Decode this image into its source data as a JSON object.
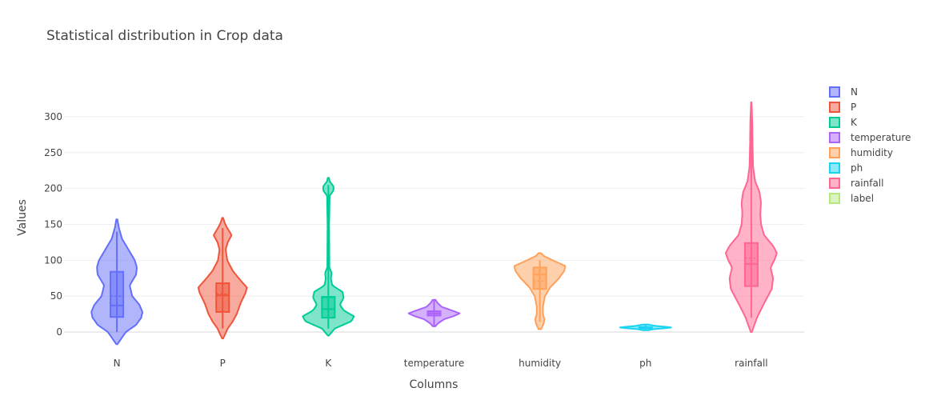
{
  "chart_data": {
    "type": "violin",
    "title": "Statistical distribution in Crop data",
    "xlabel": "Columns",
    "ylabel": "Values",
    "ylim": [
      -20,
      340
    ],
    "yticks": [
      0,
      50,
      100,
      150,
      200,
      250,
      300
    ],
    "grid": true,
    "legend_position": "right",
    "categories": [
      "N",
      "P",
      "K",
      "temperature",
      "humidity",
      "ph",
      "rainfall"
    ],
    "series": [
      {
        "name": "N",
        "color": "#636efa",
        "min": 0,
        "q1": 21,
        "median": 37,
        "q3": 84,
        "max": 140,
        "mean": 50,
        "kde_extent": [
          -17,
          157
        ],
        "profile": [
          [
            -17,
            0.02
          ],
          [
            0,
            0.35
          ],
          [
            10,
            0.75
          ],
          [
            20,
            0.95
          ],
          [
            28,
            1.0
          ],
          [
            38,
            0.88
          ],
          [
            50,
            0.6
          ],
          [
            65,
            0.5
          ],
          [
            80,
            0.75
          ],
          [
            90,
            0.78
          ],
          [
            100,
            0.7
          ],
          [
            115,
            0.45
          ],
          [
            130,
            0.2
          ],
          [
            145,
            0.08
          ],
          [
            157,
            0.02
          ]
        ]
      },
      {
        "name": "P",
        "color": "#ef553b",
        "min": 5,
        "q1": 28,
        "median": 51,
        "q3": 68,
        "max": 145,
        "mean": 53,
        "kde_extent": [
          -9,
          159
        ],
        "profile": [
          [
            -9,
            0.02
          ],
          [
            5,
            0.2
          ],
          [
            15,
            0.4
          ],
          [
            25,
            0.55
          ],
          [
            40,
            0.7
          ],
          [
            55,
            0.9
          ],
          [
            62,
            0.95
          ],
          [
            72,
            0.7
          ],
          [
            85,
            0.4
          ],
          [
            100,
            0.18
          ],
          [
            115,
            0.12
          ],
          [
            125,
            0.2
          ],
          [
            135,
            0.35
          ],
          [
            145,
            0.18
          ],
          [
            152,
            0.08
          ],
          [
            159,
            0.02
          ]
        ]
      },
      {
        "name": "K",
        "color": "#00cc96",
        "min": 5,
        "q1": 20,
        "median": 32,
        "q3": 49,
        "max": 205,
        "mean": 48,
        "kde_extent": [
          -5,
          215
        ],
        "profile": [
          [
            -5,
            0.02
          ],
          [
            5,
            0.25
          ],
          [
            15,
            0.9
          ],
          [
            22,
            1.0
          ],
          [
            30,
            0.6
          ],
          [
            38,
            0.45
          ],
          [
            48,
            0.6
          ],
          [
            56,
            0.55
          ],
          [
            65,
            0.15
          ],
          [
            75,
            0.1
          ],
          [
            82,
            0.13
          ],
          [
            90,
            0.04
          ],
          [
            150,
            0.03
          ],
          [
            190,
            0.05
          ],
          [
            197,
            0.2
          ],
          [
            203,
            0.2
          ],
          [
            210,
            0.05
          ],
          [
            215,
            0.02
          ]
        ]
      },
      {
        "name": "temperature",
        "color": "#ab63fa",
        "min": 9,
        "q1": 23,
        "median": 26,
        "q3": 29,
        "max": 44,
        "mean": 26,
        "kde_extent": [
          8,
          45
        ],
        "profile": [
          [
            8,
            0.05
          ],
          [
            12,
            0.15
          ],
          [
            18,
            0.4
          ],
          [
            22,
            0.75
          ],
          [
            26,
            1.0
          ],
          [
            30,
            0.7
          ],
          [
            35,
            0.3
          ],
          [
            40,
            0.15
          ],
          [
            45,
            0.05
          ]
        ]
      },
      {
        "name": "humidity",
        "color": "#ffa15a",
        "min": 14,
        "q1": 60,
        "median": 80,
        "q3": 90,
        "max": 100,
        "mean": 71,
        "kde_extent": [
          4,
          110
        ],
        "profile": [
          [
            4,
            0.05
          ],
          [
            12,
            0.15
          ],
          [
            18,
            0.18
          ],
          [
            25,
            0.12
          ],
          [
            35,
            0.12
          ],
          [
            50,
            0.2
          ],
          [
            62,
            0.4
          ],
          [
            75,
            0.75
          ],
          [
            85,
            0.95
          ],
          [
            92,
            1.0
          ],
          [
            100,
            0.5
          ],
          [
            106,
            0.15
          ],
          [
            110,
            0.05
          ]
        ]
      },
      {
        "name": "ph",
        "color": "#19d3f3",
        "min": 3.5,
        "q1": 6.0,
        "median": 6.4,
        "q3": 6.9,
        "max": 9.9,
        "mean": 6.5,
        "kde_extent": [
          2.5,
          10.5
        ],
        "profile": [
          [
            2.5,
            0.1
          ],
          [
            4,
            0.3
          ],
          [
            5.5,
            0.8
          ],
          [
            6.4,
            1.0
          ],
          [
            7.2,
            0.8
          ],
          [
            8.5,
            0.4
          ],
          [
            10.5,
            0.1
          ]
        ]
      },
      {
        "name": "rainfall",
        "color": "#ff6692",
        "min": 20,
        "q1": 64,
        "median": 95,
        "q3": 124,
        "max": 299,
        "mean": 103,
        "kde_extent": [
          0,
          320
        ],
        "profile": [
          [
            0,
            0.02
          ],
          [
            20,
            0.22
          ],
          [
            40,
            0.5
          ],
          [
            60,
            0.8
          ],
          [
            75,
            0.85
          ],
          [
            90,
            0.75
          ],
          [
            100,
            0.9
          ],
          [
            110,
            1.0
          ],
          [
            120,
            0.85
          ],
          [
            135,
            0.5
          ],
          [
            150,
            0.38
          ],
          [
            165,
            0.35
          ],
          [
            180,
            0.38
          ],
          [
            195,
            0.32
          ],
          [
            210,
            0.15
          ],
          [
            230,
            0.07
          ],
          [
            260,
            0.05
          ],
          [
            290,
            0.04
          ],
          [
            310,
            0.02
          ],
          [
            320,
            0.01
          ]
        ]
      }
    ],
    "legend": [
      {
        "name": "N",
        "color": "#636efa"
      },
      {
        "name": "P",
        "color": "#ef553b"
      },
      {
        "name": "K",
        "color": "#00cc96"
      },
      {
        "name": "temperature",
        "color": "#ab63fa"
      },
      {
        "name": "humidity",
        "color": "#ffa15a"
      },
      {
        "name": "ph",
        "color": "#19d3f3"
      },
      {
        "name": "rainfall",
        "color": "#ff6692"
      },
      {
        "name": "label",
        "color": "#b6e880"
      }
    ]
  }
}
